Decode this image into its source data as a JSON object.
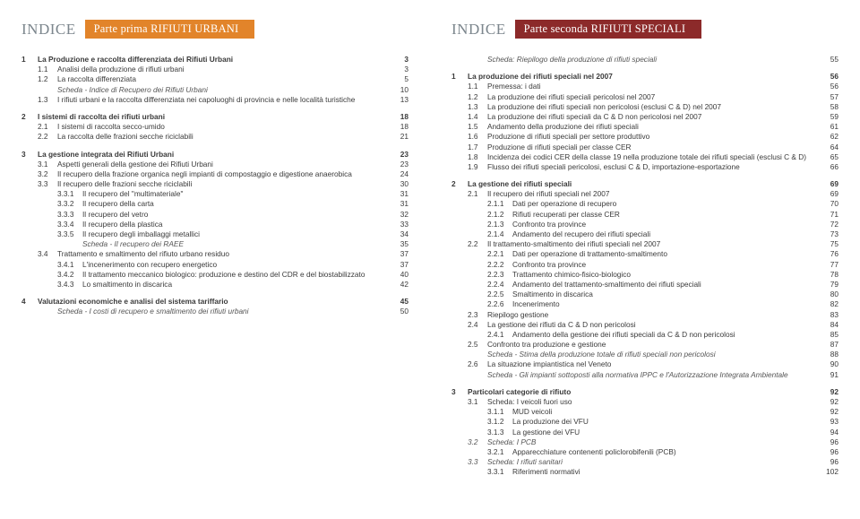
{
  "left": {
    "indice": "INDICE",
    "part": "Parte prima RIFIUTI URBANI",
    "rows": [
      {
        "t": "h",
        "n": "1",
        "x": "La Produzione e raccolta differenziata dei Rifiuti Urbani",
        "p": "3"
      },
      {
        "t": "s",
        "n": "1.1",
        "x": "Analisi della produzione di rifiuti urbani",
        "p": "3"
      },
      {
        "t": "s",
        "n": "1.2",
        "x": "La raccolta differenziata",
        "p": "5"
      },
      {
        "t": "si",
        "n": "",
        "x": "Scheda - Indice di Recupero dei Rifiuti Urbani",
        "p": "10"
      },
      {
        "t": "s",
        "n": "1.3",
        "x": "I rifiuti urbani e la raccolta differenziata nei capoluoghi di provincia e nelle località turistiche",
        "p": "13"
      },
      {
        "t": "gap"
      },
      {
        "t": "h",
        "n": "2",
        "x": "I sistemi di raccolta dei rifiuti urbani",
        "p": "18"
      },
      {
        "t": "s",
        "n": "2.1",
        "x": "I sistemi di raccolta secco-umido",
        "p": "18"
      },
      {
        "t": "s",
        "n": "2.2",
        "x": "La raccolta delle frazioni secche riciclabili",
        "p": "21"
      },
      {
        "t": "gap"
      },
      {
        "t": "h",
        "n": "3",
        "x": "La gestione integrata dei Rifiuti Urbani",
        "p": "23"
      },
      {
        "t": "s",
        "n": "3.1",
        "x": "Aspetti generali della gestione dei Rifiuti Urbani",
        "p": "23"
      },
      {
        "t": "s",
        "n": "3.2",
        "x": "Il recupero della frazione organica negli impianti di compostaggio e digestione anaerobica",
        "p": "24"
      },
      {
        "t": "s",
        "n": "3.3",
        "x": "Il recupero delle frazioni secche riciclabili",
        "p": "30"
      },
      {
        "t": "ss",
        "n": "3.3.1",
        "x": "Il recupero del \"multimateriale\"",
        "p": "31"
      },
      {
        "t": "ss",
        "n": "3.3.2",
        "x": "Il recupero della carta",
        "p": "31"
      },
      {
        "t": "ss",
        "n": "3.3.3",
        "x": "Il recupero del vetro",
        "p": "32"
      },
      {
        "t": "ss",
        "n": "3.3.4",
        "x": "Il recupero della plastica",
        "p": "33"
      },
      {
        "t": "ss",
        "n": "3.3.5",
        "x": "Il recupero degli imballaggi metallici",
        "p": "34"
      },
      {
        "t": "ssi",
        "n": "",
        "x": "Scheda - Il recupero dei RAEE",
        "p": "35"
      },
      {
        "t": "s",
        "n": "3.4",
        "x": "Trattamento e smaltimento del rifiuto urbano residuo",
        "p": "37"
      },
      {
        "t": "ss",
        "n": "3.4.1",
        "x": "L'incenerimento con recupero energetico",
        "p": "37"
      },
      {
        "t": "ss",
        "n": "3.4.2",
        "x": "Il trattamento meccanico biologico: produzione e destino del CDR e del biostabilizzato",
        "p": "40"
      },
      {
        "t": "ss",
        "n": "3.4.3",
        "x": "Lo smaltimento in discarica",
        "p": "42"
      },
      {
        "t": "gap"
      },
      {
        "t": "h",
        "n": "4",
        "x": "Valutazioni economiche e analisi del sistema tariffario",
        "p": "45"
      },
      {
        "t": "si",
        "n": "",
        "x": "Scheda - I costi di recupero e smaltimento dei rifiuti urbani",
        "p": "50"
      }
    ]
  },
  "right": {
    "indice": "INDICE",
    "part": "Parte seconda RIFIUTI SPECIALI",
    "rows": [
      {
        "t": "si",
        "n": "",
        "x": "Scheda: Riepilogo della produzione di rifiuti speciali",
        "p": "55"
      },
      {
        "t": "gap"
      },
      {
        "t": "h",
        "n": "1",
        "x": "La produzione dei rifiuti speciali nel 2007",
        "p": "56"
      },
      {
        "t": "s",
        "n": "1.1",
        "x": "Premessa: i dati",
        "p": "56"
      },
      {
        "t": "s",
        "n": "1.2",
        "x": "La produzione dei rifiuti speciali pericolosi nel 2007",
        "p": "57"
      },
      {
        "t": "s",
        "n": "1.3",
        "x": "La produzione dei rifiuti speciali non pericolosi (esclusi C & D) nel 2007",
        "p": "58"
      },
      {
        "t": "s",
        "n": "1.4",
        "x": "La produzione dei rifiuti speciali da C & D non pericolosi nel 2007",
        "p": "59"
      },
      {
        "t": "s",
        "n": "1.5",
        "x": "Andamento della produzione dei rifiuti speciali",
        "p": "61"
      },
      {
        "t": "s",
        "n": "1.6",
        "x": "Produzione di rifiuti speciali per settore produttivo",
        "p": "62"
      },
      {
        "t": "s",
        "n": "1.7",
        "x": "Produzione di rifiuti speciali per classe CER",
        "p": "64"
      },
      {
        "t": "s",
        "n": "1.8",
        "x": "Incidenza dei codici CER della classe 19 nella produzione totale dei rifiuti speciali (esclusi C & D)",
        "p": "65"
      },
      {
        "t": "s",
        "n": "1.9",
        "x": "Flusso dei rifiuti speciali pericolosi, esclusi C & D, importazione-esportazione",
        "p": "66"
      },
      {
        "t": "gap"
      },
      {
        "t": "h",
        "n": "2",
        "x": "La gestione dei rifiuti speciali",
        "p": "69"
      },
      {
        "t": "s",
        "n": "2.1",
        "x": "Il recupero dei rifiuti speciali nel 2007",
        "p": "69"
      },
      {
        "t": "ss",
        "n": "2.1.1",
        "x": "Dati per operazione di recupero",
        "p": "70"
      },
      {
        "t": "ss",
        "n": "2.1.2",
        "x": "Rifiuti recuperati per classe CER",
        "p": "71"
      },
      {
        "t": "ss",
        "n": "2.1.3",
        "x": "Confronto tra province",
        "p": "72"
      },
      {
        "t": "ss",
        "n": "2.1.4",
        "x": "Andamento del recupero dei rifiuti speciali",
        "p": "73"
      },
      {
        "t": "s",
        "n": "2.2",
        "x": "Il trattamento-smaltimento dei rifiuti speciali nel 2007",
        "p": "75"
      },
      {
        "t": "ss",
        "n": "2.2.1",
        "x": "Dati per operazione di trattamento-smaltimento",
        "p": "76"
      },
      {
        "t": "ss",
        "n": "2.2.2",
        "x": "Confronto tra province",
        "p": "77"
      },
      {
        "t": "ss",
        "n": "2.2.3",
        "x": "Trattamento chimico-fisico-biologico",
        "p": "78"
      },
      {
        "t": "ss",
        "n": "2.2.4",
        "x": "Andamento del trattamento-smaltimento dei rifiuti speciali",
        "p": "79"
      },
      {
        "t": "ss",
        "n": "2.2.5",
        "x": "Smaltimento in discarica",
        "p": "80"
      },
      {
        "t": "ss",
        "n": "2.2.6",
        "x": "Incenerimento",
        "p": "82"
      },
      {
        "t": "s",
        "n": "2.3",
        "x": "Riepilogo gestione",
        "p": "83"
      },
      {
        "t": "s",
        "n": "2.4",
        "x": "La gestione dei rifiuti da C & D non pericolosi",
        "p": "84"
      },
      {
        "t": "ss",
        "n": "2.4.1",
        "x": "Andamento della gestione dei rifiuti speciali da C & D non pericolosi",
        "p": "85"
      },
      {
        "t": "s",
        "n": "2.5",
        "x": "Confronto tra produzione e gestione",
        "p": "87"
      },
      {
        "t": "si",
        "n": "",
        "x": "Scheda - Stima della produzione totale di rifiuti speciali non pericolosi",
        "p": "88"
      },
      {
        "t": "s",
        "n": "2.6",
        "x": "La situazione impiantistica nel Veneto",
        "p": "90"
      },
      {
        "t": "si",
        "n": "",
        "x": "Scheda - Gli impianti sottoposti alla normativa IPPC e l'Autorizzazione Integrata Ambientale",
        "p": "91"
      },
      {
        "t": "gap"
      },
      {
        "t": "h",
        "n": "3",
        "x": "Particolari categorie di rifiuto",
        "p": "92"
      },
      {
        "t": "s",
        "n": "3.1",
        "x": "Scheda: I veicoli fuori uso",
        "p": "92"
      },
      {
        "t": "ss",
        "n": "3.1.1",
        "x": "MUD veicoli",
        "p": "92"
      },
      {
        "t": "ss",
        "n": "3.1.2",
        "x": "La produzione dei VFU",
        "p": "93"
      },
      {
        "t": "ss",
        "n": "3.1.3",
        "x": "La gestione dei VFU",
        "p": "94"
      },
      {
        "t": "si2",
        "n": "3.2",
        "x": "Scheda: I PCB",
        "p": "96"
      },
      {
        "t": "ss",
        "n": "3.2.1",
        "x": "Apparecchiature contenenti policlorobifenili (PCB)",
        "p": "96"
      },
      {
        "t": "si2",
        "n": "3.3",
        "x": "Scheda: I rifiuti sanitari",
        "p": "96"
      },
      {
        "t": "ss",
        "n": "3.3.1",
        "x": "Riferimenti normativi",
        "p": "102"
      }
    ]
  }
}
